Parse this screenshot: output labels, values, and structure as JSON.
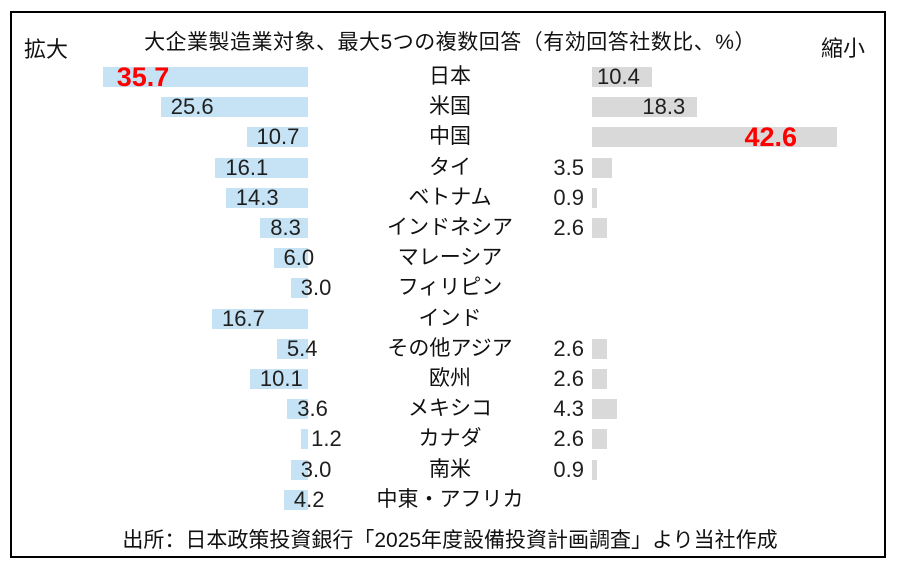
{
  "header": {
    "title": "大企業製造業対象、最大5つの複数回答（有効回答社数比、%）",
    "left_label": "拡大",
    "right_label": "縮小"
  },
  "footer": {
    "source": "出所：日本政策投資銀行「2025年度設備投資計画調査」より当社作成"
  },
  "colors": {
    "expand_bar": "#C5E3F4",
    "shrink_bar": "#D9D9D9",
    "highlight_text": "#FF0000",
    "value_text": "#1F1F1F",
    "border": "#000000"
  },
  "chart_data": {
    "type": "bar",
    "orientation": "horizontal-diverging",
    "unit": "%",
    "title": "大企業製造業対象、最大5つの複数回答（有効回答社数比、%）",
    "legend": {
      "left_series": "拡大",
      "right_series": "縮小"
    },
    "grid": false,
    "xlim_each_side": [
      0,
      50
    ],
    "categories": [
      "日本",
      "米国",
      "中国",
      "タイ",
      "ベトナム",
      "インドネシア",
      "マレーシア",
      "フィリピン",
      "インド",
      "その他アジア",
      "欧州",
      "メキシコ",
      "カナダ",
      "南米",
      "中東・アフリカ"
    ],
    "series": [
      {
        "name": "拡大",
        "side": "left",
        "values": [
          35.7,
          25.6,
          10.7,
          16.1,
          14.3,
          8.3,
          6.0,
          3.0,
          16.7,
          5.4,
          10.1,
          3.6,
          1.2,
          3.0,
          4.2
        ]
      },
      {
        "name": "縮小",
        "side": "right",
        "values": [
          10.4,
          18.3,
          42.6,
          3.5,
          0.9,
          2.6,
          null,
          null,
          null,
          2.6,
          2.6,
          4.3,
          2.6,
          0.9,
          null
        ]
      }
    ],
    "highlights": [
      {
        "series": "拡大",
        "category": "日本",
        "value": 35.7
      },
      {
        "series": "縮小",
        "category": "中国",
        "value": 42.6
      }
    ]
  }
}
